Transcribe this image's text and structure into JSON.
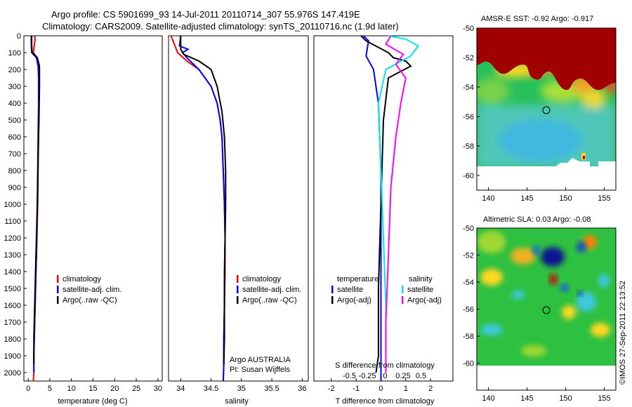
{
  "header": {
    "line1": "Argo profile: CS 5901699_93 14-Jul-2011 20110714_307 55.976S 147.419E",
    "line2": "Climatology: CARS2009. Satellite-adjusted climatology: synTS_20110716.nc (1.9d later)"
  },
  "footer": {
    "stamp": "©IMOS 27-Sep-2011 22:13:52"
  },
  "colors": {
    "climatology": "#ff0000",
    "satellite": "#0000ff",
    "argo": "#000000",
    "cyan": "#00e5ee",
    "magenta": "#ff00ff"
  },
  "chart_data": [
    {
      "id": "temp",
      "type": "line",
      "xlabel": "temperature (deg C)",
      "ylabel": "",
      "xlim": [
        -1,
        31
      ],
      "ylim": [
        2050,
        0
      ],
      "xticks": [
        "0",
        "5",
        "10",
        "15",
        "20",
        "25",
        "30"
      ],
      "xtick_values": [
        0,
        5,
        10,
        15,
        20,
        25,
        30
      ],
      "yticks": [
        "0",
        "100",
        "200",
        "300",
        "400",
        "500",
        "600",
        "700",
        "800",
        "900",
        "1000",
        "1100",
        "1200",
        "1300",
        "1400",
        "1500",
        "1600",
        "1700",
        "1800",
        "1900",
        "2000"
      ],
      "ytick_values": [
        0,
        100,
        200,
        300,
        400,
        500,
        600,
        700,
        800,
        900,
        1000,
        1100,
        1200,
        1300,
        1400,
        1500,
        1600,
        1700,
        1800,
        1900,
        2000
      ],
      "legend": [
        "climatology",
        "satellite-adj. clim.",
        "Argo(..raw -QC)"
      ],
      "legend_colors": [
        "#ff0000",
        "#0000ff",
        "#000000"
      ],
      "series": [
        {
          "name": "climatology",
          "color": "#ff0000",
          "x": [
            1.5,
            1.6,
            1.2,
            2.0,
            2.4,
            2.5,
            2.5,
            2.4,
            2.3,
            2.2,
            2.0,
            1.9,
            1.8,
            1.7,
            1.6,
            1.5,
            1.4,
            1.3,
            1.3,
            1.2,
            1.2
          ],
          "y": [
            0,
            20,
            100,
            130,
            180,
            250,
            400,
            600,
            800,
            1000,
            1200,
            1300,
            1400,
            1500,
            1600,
            1700,
            1800,
            1900,
            2000,
            2050,
            2050
          ]
        },
        {
          "name": "satellite-adj. clim.",
          "color": "#0000ff",
          "x": [
            0.7,
            0.7,
            0.8,
            1.9,
            2.3,
            2.4,
            2.4,
            2.3,
            2.2,
            2.1,
            2.0,
            1.9,
            1.8,
            1.7,
            1.6,
            1.5,
            1.4,
            1.3,
            1.3
          ],
          "y": [
            0,
            50,
            100,
            130,
            180,
            250,
            400,
            600,
            800,
            1000,
            1200,
            1300,
            1400,
            1500,
            1600,
            1700,
            1800,
            1900,
            2000
          ]
        },
        {
          "name": "Argo(..raw -QC)",
          "color": "#000000",
          "x": [
            0.8,
            0.8,
            0.9,
            1.4,
            2.1,
            2.6,
            2.6,
            2.5,
            2.3,
            2.2,
            2.0,
            1.9,
            1.8,
            1.7,
            1.6,
            1.5,
            1.4,
            1.3,
            1.3
          ],
          "y": [
            0,
            50,
            100,
            110,
            130,
            180,
            300,
            500,
            700,
            900,
            1100,
            1200,
            1300,
            1400,
            1500,
            1600,
            1700,
            1800,
            1950
          ]
        }
      ],
      "annotations": []
    },
    {
      "id": "sal",
      "type": "line",
      "xlabel": "salinity",
      "xlim": [
        33.8,
        36.1
      ],
      "ylim": [
        2050,
        0
      ],
      "xticks": [
        "34",
        "34.5",
        "35",
        "35.5",
        "36"
      ],
      "xtick_values": [
        34,
        34.5,
        35,
        35.5,
        36
      ],
      "legend": [
        "climatology",
        "satellite-adj. clim.",
        "Argo(..raw -QC)"
      ],
      "legend_colors": [
        "#ff0000",
        "#0000ff",
        "#000000"
      ],
      "annotations": [
        "Argo AUSTRALIA",
        "PI: Susan Wijffels"
      ],
      "series": [
        {
          "name": "climatology",
          "color": "#ff0000",
          "x": [
            33.84,
            33.95,
            34.1,
            34.3,
            34.5,
            34.6,
            34.65,
            34.68,
            34.7,
            34.72,
            34.73,
            34.73,
            34.72,
            34.71,
            34.71,
            34.7
          ],
          "y": [
            0,
            100,
            150,
            200,
            300,
            400,
            500,
            600,
            800,
            1000,
            1200,
            1400,
            1600,
            1800,
            1950,
            2050
          ]
        },
        {
          "name": "satellite-adj. clim.",
          "color": "#0000ff",
          "x": [
            34.0,
            33.98,
            34.12,
            34.03,
            34.1,
            34.3,
            34.5,
            34.6,
            34.65,
            34.68,
            34.7,
            34.72,
            34.73,
            34.72,
            34.72,
            34.71,
            34.71,
            34.7
          ],
          "y": [
            0,
            60,
            80,
            100,
            130,
            200,
            300,
            400,
            500,
            600,
            800,
            1000,
            1200,
            1400,
            1600,
            1800,
            1950,
            2050
          ]
        },
        {
          "name": "Argo(..raw -QC)",
          "color": "#000000",
          "x": [
            34.0,
            34.0,
            34.05,
            34.3,
            34.5,
            34.6,
            34.68,
            34.72,
            34.74,
            34.74,
            34.73,
            34.72,
            34.72,
            34.71
          ],
          "y": [
            0,
            80,
            110,
            150,
            200,
            300,
            450,
            600,
            800,
            1000,
            1200,
            1500,
            1800,
            1950
          ]
        }
      ]
    },
    {
      "id": "diff",
      "type": "line",
      "xlabel": "T difference from climatology",
      "xlabel_top": "S difference from climatology",
      "xlim": [
        -2.7,
        2.9
      ],
      "ylim": [
        2050,
        0
      ],
      "xticks": [
        "-2",
        "-1",
        "0",
        "1",
        "2"
      ],
      "xtick_values": [
        -2,
        -1,
        0,
        1,
        2
      ],
      "s_ticks": [
        "-0.5",
        "-0.25",
        "0",
        "0.25",
        "0.5"
      ],
      "s_tick_values": [
        -0.5,
        -0.25,
        0,
        0.25,
        0.5
      ],
      "legend_left_title": "temperature",
      "legend_right_title": "salinity",
      "legend": [
        "satellite",
        "Argo(-adj)",
        "satellite",
        "Argo(-adj)"
      ],
      "legend_colors": [
        "#0000ff",
        "#000000",
        "#00e5ee",
        "#ff00ff"
      ],
      "series": [
        {
          "name": "T satellite",
          "color": "#0000ff",
          "x": [
            -0.7,
            -0.5,
            -0.6,
            -0.3,
            -0.1,
            0.0,
            0.0,
            0.0,
            0.0,
            0.0
          ],
          "y": [
            0,
            30,
            120,
            200,
            400,
            800,
            1200,
            1600,
            2000,
            2050
          ]
        },
        {
          "name": "T Argo",
          "color": "#000000",
          "x": [
            -0.8,
            -0.6,
            0.3,
            0.5,
            1.0,
            1.2,
            0.3,
            0.1,
            0.0,
            -0.1,
            -0.1,
            -0.2
          ],
          "y": [
            0,
            30,
            100,
            130,
            150,
            180,
            250,
            500,
            1000,
            1500,
            1900,
            2000
          ]
        },
        {
          "name": "S satellite",
          "color": "#00e5ee",
          "x": [
            0.3,
            1.0,
            1.5,
            1.2,
            0.2,
            -0.1,
            0.0,
            0.1,
            0.2,
            0.2,
            0.2
          ],
          "y": [
            0,
            20,
            60,
            120,
            200,
            400,
            800,
            1200,
            1600,
            1900,
            2000
          ]
        },
        {
          "name": "S Argo",
          "color": "#ff00ff",
          "x": [
            0.4,
            0.2,
            0.9,
            0.6,
            1.0,
            0.8,
            0.6,
            0.4,
            0.3,
            0.2,
            0.2
          ],
          "y": [
            0,
            50,
            110,
            170,
            250,
            400,
            600,
            900,
            1300,
            1700,
            2000
          ]
        }
      ]
    },
    {
      "id": "sst_map",
      "type": "heatmap",
      "title": "AMSR-E SST: -0.92 Argo: -0.917",
      "xlim": [
        138.5,
        156.5
      ],
      "ylim": [
        -61,
        -50
      ],
      "xticks": [
        "140",
        "145",
        "150",
        "155"
      ],
      "xtick_values": [
        140,
        145,
        150,
        155
      ],
      "yticks": [
        "-50",
        "-52",
        "-54",
        "-56",
        "-58",
        "-60"
      ],
      "ytick_values": [
        -50,
        -52,
        -54,
        -56,
        -58,
        -60
      ],
      "marker": [
        147.4,
        -56.0
      ]
    },
    {
      "id": "sla_map",
      "type": "heatmap",
      "title": "Altimetric SLA: 0.03 Argo: -0.08",
      "xlim": [
        138.5,
        156.5
      ],
      "ylim": [
        -62,
        -50
      ],
      "xticks": [
        "140",
        "145",
        "150",
        "155"
      ],
      "xtick_values": [
        140,
        145,
        150,
        155
      ],
      "yticks": [
        "-50",
        "-52",
        "-54",
        "-56",
        "-58",
        "-60"
      ],
      "ytick_values": [
        -50,
        -52,
        -54,
        -56,
        -58,
        -60
      ],
      "marker": [
        147.4,
        -56.0
      ]
    }
  ]
}
